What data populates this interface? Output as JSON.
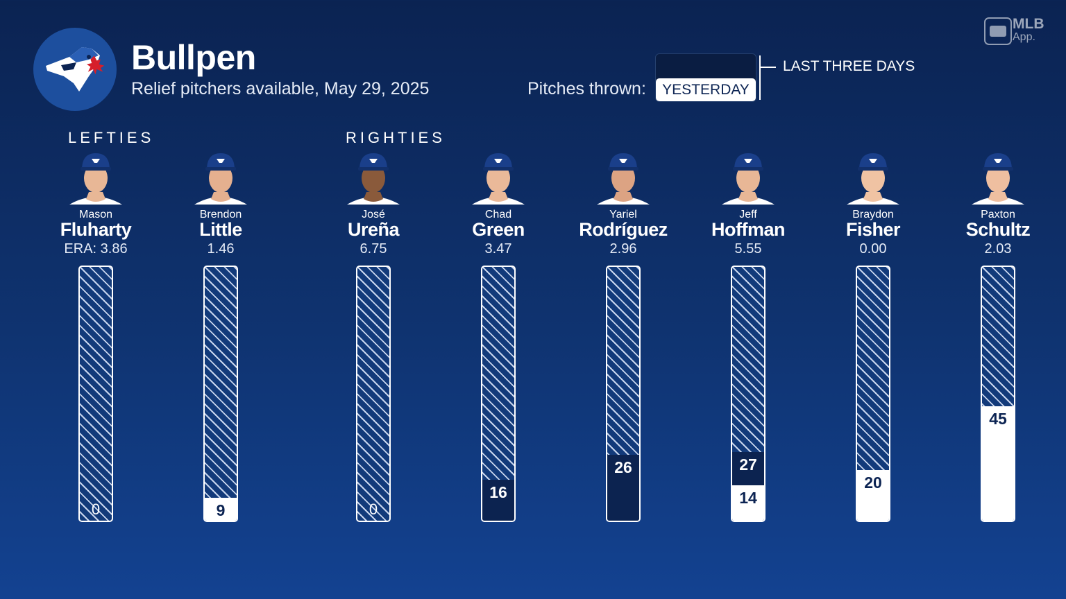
{
  "header": {
    "title": "Bullpen",
    "subtitle": "Relief pitchers available, May 29, 2025",
    "pitches_label": "Pitches thrown:",
    "toggle_selected": "YESTERDAY",
    "legend_three_days": "LAST THREE DAYS"
  },
  "branding": {
    "mlb": "MLB",
    "app": "App."
  },
  "sections": {
    "lefties": "LEFTIES",
    "righties": "RIGHTIES"
  },
  "colors": {
    "background": "#0f3370",
    "yesterday_fill": "#ffffff",
    "three_day_fill": "#0c2350",
    "hatch": "#c9d6ee"
  },
  "chart_data": {
    "type": "bar",
    "orientation": "vertical",
    "ylim": [
      0,
      100
    ],
    "series": [
      {
        "name": "YESTERDAY"
      },
      {
        "name": "LAST THREE DAYS"
      }
    ],
    "players": [
      {
        "first": "Mason",
        "last": "Fluharty",
        "era": "ERA: 3.86",
        "hand": "left",
        "yesterday": 0,
        "three_days": 0,
        "label_yesterday": "0",
        "label_three_days": ""
      },
      {
        "first": "Brendon",
        "last": "Little",
        "era": "1.46",
        "hand": "left",
        "yesterday": 9,
        "three_days": 9,
        "label_yesterday": "9",
        "label_three_days": ""
      },
      {
        "first": "José",
        "last": "Ureña",
        "era": "6.75",
        "hand": "right",
        "yesterday": 0,
        "three_days": 0,
        "label_yesterday": "0",
        "label_three_days": ""
      },
      {
        "first": "Chad",
        "last": "Green",
        "era": "3.47",
        "hand": "right",
        "yesterday": 0,
        "three_days": 16,
        "label_yesterday": "",
        "label_three_days": "16"
      },
      {
        "first": "Yariel",
        "last": "Rodríguez",
        "era": "2.96",
        "hand": "right",
        "yesterday": 0,
        "three_days": 26,
        "label_yesterday": "",
        "label_three_days": "26"
      },
      {
        "first": "Jeff",
        "last": "Hoffman",
        "era": "5.55",
        "hand": "right",
        "yesterday": 14,
        "three_days": 27,
        "label_yesterday": "14",
        "label_three_days": "27"
      },
      {
        "first": "Braydon",
        "last": "Fisher",
        "era": "0.00",
        "hand": "right",
        "yesterday": 20,
        "three_days": 20,
        "label_yesterday": "20",
        "label_three_days": ""
      },
      {
        "first": "Paxton",
        "last": "Schultz",
        "era": "2.03",
        "hand": "right",
        "yesterday": 45,
        "three_days": 45,
        "label_yesterday": "45",
        "label_three_days": ""
      }
    ]
  }
}
